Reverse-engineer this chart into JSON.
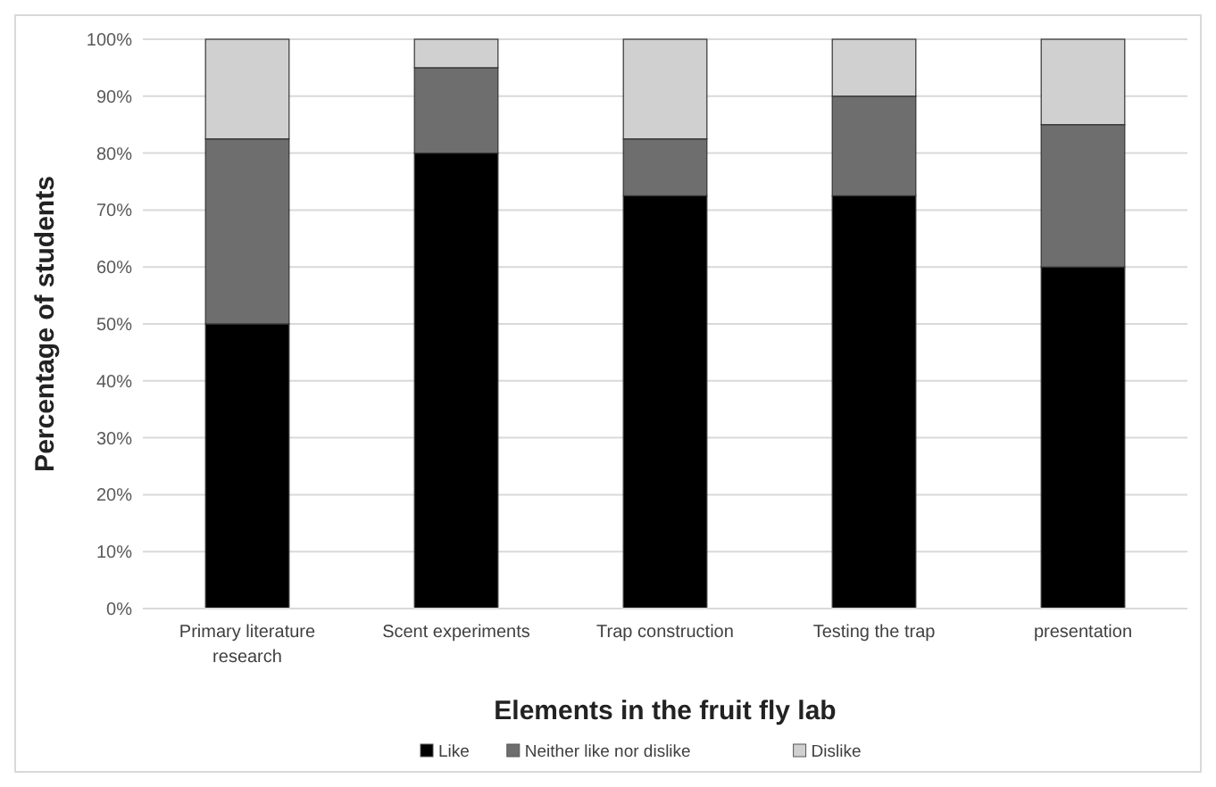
{
  "chart_data": {
    "type": "bar",
    "stacked": true,
    "categories": [
      "Primary literature research",
      "Scent experiments",
      "Trap construction",
      "Testing the trap",
      "presentation"
    ],
    "series": [
      {
        "name": "Like",
        "color": "#000000",
        "values": [
          50,
          80,
          72.5,
          72.5,
          60
        ]
      },
      {
        "name": "Neither like nor dislike",
        "color": "#6e6e6e",
        "values": [
          32.5,
          15,
          10,
          17.5,
          25
        ]
      },
      {
        "name": "Dislike",
        "color": "#d0d0d0",
        "values": [
          17.5,
          5,
          17.5,
          10,
          15
        ]
      }
    ],
    "xlabel": "Elements in the fruit fly lab",
    "ylabel": "Percentage of students",
    "ylim": [
      0,
      100
    ],
    "yticks": [
      {
        "value": 0,
        "label": "0%"
      },
      {
        "value": 10,
        "label": "10%"
      },
      {
        "value": 20,
        "label": "20%"
      },
      {
        "value": 30,
        "label": "30%"
      },
      {
        "value": 40,
        "label": "40%"
      },
      {
        "value": 50,
        "label": "50%"
      },
      {
        "value": 60,
        "label": "60%"
      },
      {
        "value": 70,
        "label": "70%"
      },
      {
        "value": 80,
        "label": "80%"
      },
      {
        "value": 90,
        "label": "90%"
      },
      {
        "value": 100,
        "label": "100%"
      }
    ],
    "grid": "y",
    "legend": "bottom"
  }
}
